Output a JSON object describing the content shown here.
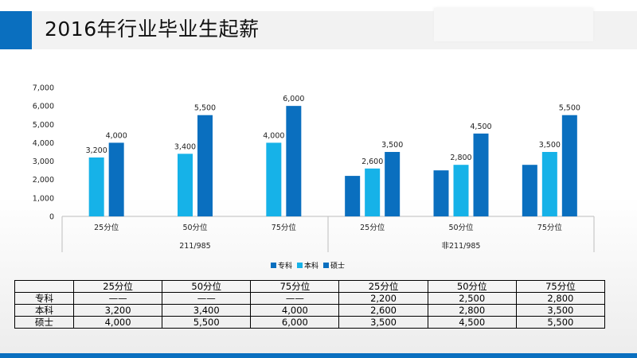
{
  "title": "2016年行业毕业生起薪",
  "colors": {
    "accent": "#0a6fbf",
    "zhuanke": "#0a6fbf",
    "benke": "#16b2e8",
    "shuoshi": "#0a6fbf"
  },
  "chart_data": {
    "type": "bar",
    "groups": [
      "211/985",
      "非211/985"
    ],
    "categories": [
      "25分位",
      "50分位",
      "75分位",
      "25分位",
      "50分位",
      "75分位"
    ],
    "series": [
      {
        "name": "专科",
        "color": "#0a6fbf",
        "values": [
          null,
          null,
          null,
          2200,
          2500,
          2800
        ],
        "labels": [
          "",
          "",
          "",
          "",
          "",
          ""
        ]
      },
      {
        "name": "本科",
        "color": "#16b2e8",
        "values": [
          3200,
          3400,
          4000,
          2600,
          2800,
          3500
        ],
        "labels": [
          "3,200",
          "3,400",
          "4,000",
          "2,600",
          "2,800",
          "3,500"
        ]
      },
      {
        "name": "硕士",
        "color": "#0a6fbf",
        "values": [
          4000,
          5500,
          6000,
          3500,
          4500,
          5500
        ],
        "labels": [
          "4,000",
          "5,500",
          "6,000",
          "3,500",
          "4,500",
          "5,500"
        ]
      }
    ],
    "ylim": [
      0,
      7000
    ],
    "yticks": [
      "0",
      "1,000",
      "2,000",
      "3,000",
      "4,000",
      "5,000",
      "6,000",
      "7,000"
    ],
    "legend": "bottom"
  },
  "table": {
    "header": [
      "",
      "25分位",
      "50分位",
      "75分位",
      "25分位",
      "50分位",
      "75分位"
    ],
    "rows": [
      [
        "专科",
        "——",
        "——",
        "——",
        "2,200",
        "2,500",
        "2,800"
      ],
      [
        "本科",
        "3,200",
        "3,400",
        "4,000",
        "2,600",
        "2,800",
        "3,500"
      ],
      [
        "硕士",
        "4,000",
        "5,500",
        "6,000",
        "3,500",
        "4,500",
        "5,500"
      ]
    ]
  }
}
